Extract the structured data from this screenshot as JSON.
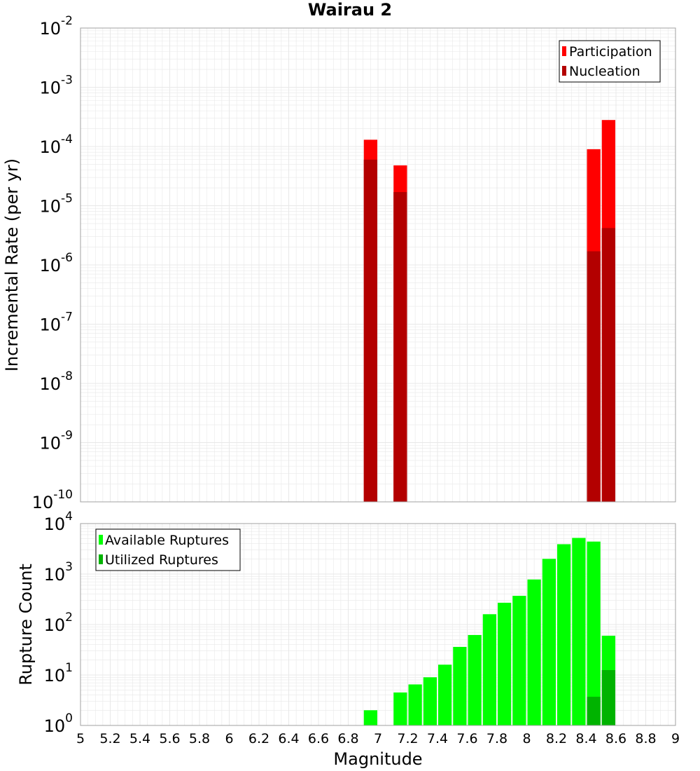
{
  "title": "Wairau 2",
  "colors": {
    "participation": "#ff0000",
    "nucleation": "#b30000",
    "available": "#00ff00",
    "utilized": "#00b300",
    "grid": "#e8e8e8",
    "frame": "#a0a0a0"
  },
  "chart_data": [
    {
      "type": "bar",
      "panel": "top",
      "title": "Wairau 2",
      "xlabel": "",
      "ylabel": "Incremental Rate (per yr)",
      "yscale": "log",
      "ylim_exp": [
        -10,
        -2
      ],
      "xlim": [
        5,
        9
      ],
      "grid": true,
      "legend_position": "top-right",
      "bar_width": 0.1,
      "series": [
        {
          "name": "Participation",
          "color": "#ff0000",
          "points": [
            {
              "x": 6.95,
              "y": 0.00013
            },
            {
              "x": 7.15,
              "y": 4.8e-05
            },
            {
              "x": 8.45,
              "y": 9e-05
            },
            {
              "x": 8.55,
              "y": 0.00028
            }
          ]
        },
        {
          "name": "Nucleation",
          "color": "#b30000",
          "points": [
            {
              "x": 6.95,
              "y": 6e-05
            },
            {
              "x": 7.15,
              "y": 1.7e-05
            },
            {
              "x": 8.45,
              "y": 1.7e-06
            },
            {
              "x": 8.55,
              "y": 4.2e-06
            }
          ]
        }
      ]
    },
    {
      "type": "bar",
      "panel": "bottom",
      "xlabel": "Magnitude",
      "ylabel": "Rupture Count",
      "yscale": "log",
      "ylim_exp": [
        0,
        4
      ],
      "xlim": [
        5,
        9
      ],
      "grid": true,
      "legend_position": "top-left",
      "bar_width": 0.1,
      "series": [
        {
          "name": "Available Ruptures",
          "color": "#00ff00",
          "points": [
            {
              "x": 6.65,
              "y": 1
            },
            {
              "x": 6.95,
              "y": 2
            },
            {
              "x": 7.05,
              "y": 1
            },
            {
              "x": 7.15,
              "y": 4.5
            },
            {
              "x": 7.25,
              "y": 6.5
            },
            {
              "x": 7.35,
              "y": 9
            },
            {
              "x": 7.45,
              "y": 16
            },
            {
              "x": 7.55,
              "y": 36
            },
            {
              "x": 7.65,
              "y": 62
            },
            {
              "x": 7.75,
              "y": 160
            },
            {
              "x": 7.85,
              "y": 270
            },
            {
              "x": 7.95,
              "y": 370
            },
            {
              "x": 8.05,
              "y": 780
            },
            {
              "x": 8.15,
              "y": 2000
            },
            {
              "x": 8.25,
              "y": 3900
            },
            {
              "x": 8.35,
              "y": 5200
            },
            {
              "x": 8.45,
              "y": 4400
            },
            {
              "x": 8.55,
              "y": 60
            }
          ]
        },
        {
          "name": "Utilized Ruptures",
          "color": "#00b300",
          "points": [
            {
              "x": 6.95,
              "y": 1
            },
            {
              "x": 7.15,
              "y": 1
            },
            {
              "x": 8.45,
              "y": 3.7
            },
            {
              "x": 8.55,
              "y": 12.5
            }
          ]
        }
      ],
      "xticks": [
        "5",
        "5.2",
        "5.4",
        "5.6",
        "5.8",
        "6",
        "6.2",
        "6.4",
        "6.6",
        "6.8",
        "7",
        "7.2",
        "7.4",
        "7.6",
        "7.8",
        "8",
        "8.2",
        "8.4",
        "8.6",
        "8.8",
        "9"
      ]
    }
  ]
}
